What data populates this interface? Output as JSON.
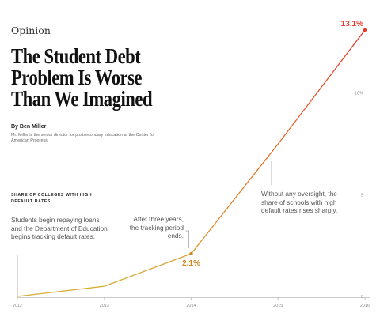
{
  "article": {
    "section": "Opinion",
    "headline_lines": [
      "The Student Debt",
      "Problem Is Worse",
      "Than We Imagined"
    ],
    "byline": "By Ben Miller",
    "bio": "Mr. Miller is the senior director for postsecondary education at the Center for American Progress."
  },
  "notes": {
    "start": "Students begin repaying loans and the Department of Education begins tracking default rates.",
    "mid": "After three years, the tracking period ends.",
    "end": "Without any oversight, the share of schools with high default rates rises sharply."
  },
  "chart_data": {
    "type": "line",
    "title": "SHARE OF COLLEGES WITH HIGH DEFAULT RATES",
    "xlabel": "",
    "ylabel": "",
    "x": [
      "2012",
      "2013",
      "2014",
      "2015",
      "2016"
    ],
    "values": [
      0,
      0.5,
      2.1,
      7.5,
      13.1
    ],
    "data_labels": [
      {
        "index": 2,
        "text": "2.1%"
      },
      {
        "index": 4,
        "text": "13.1%"
      }
    ],
    "yticks": [
      {
        "value": 0,
        "label": "0"
      },
      {
        "value": 5,
        "label": "5"
      },
      {
        "value": 10,
        "label": "10%"
      }
    ],
    "ylim": [
      0,
      13.1
    ],
    "grid": false,
    "colors": {
      "early": "#d5b33a",
      "mid": "#e07a23",
      "late": "#e8382a",
      "axis": "#bbbbbb",
      "tick": "#888888"
    }
  }
}
